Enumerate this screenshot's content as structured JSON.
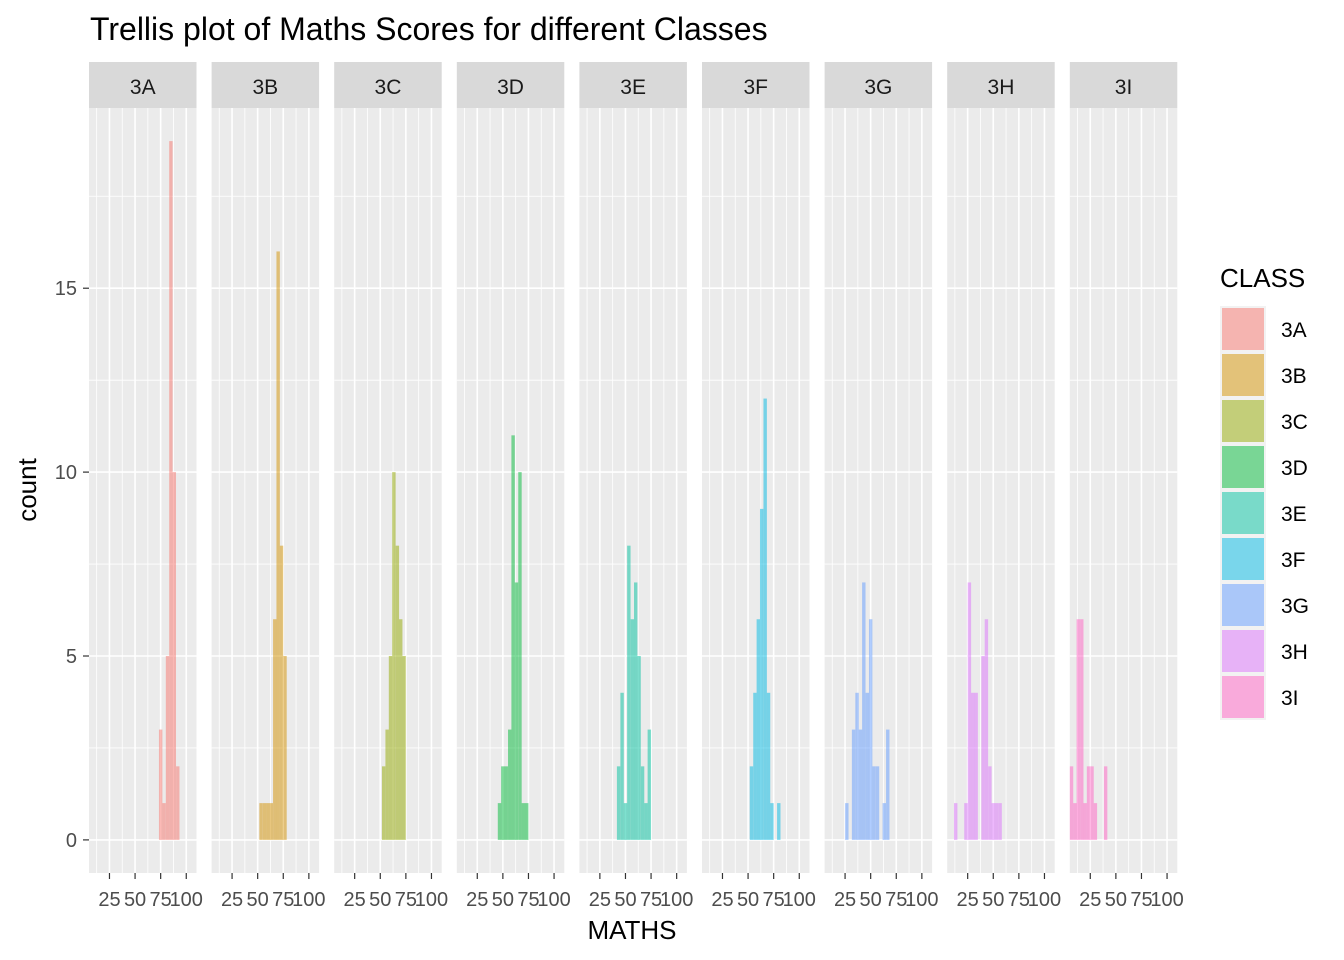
{
  "chart_data": {
    "type": "bar",
    "subtype": "faceted-histogram",
    "title": "Trellis plot of Maths Scores for different Classes",
    "xlabel": "MATHS",
    "ylabel": "count",
    "xlim": [
      5,
      110
    ],
    "ylim": [
      -0.9,
      19.9
    ],
    "x_ticks": [
      25,
      50,
      75,
      100
    ],
    "y_ticks": [
      0,
      5,
      10,
      15
    ],
    "bin_width": 3.33,
    "bar_opacity": 0.5,
    "grid": true,
    "panel_background": "#ebebeb",
    "strip_background": "#d9d9d9",
    "legend": {
      "title": "CLASS",
      "position": "right",
      "entries": [
        "3A",
        "3B",
        "3C",
        "3D",
        "3E",
        "3F",
        "3G",
        "3H",
        "3I"
      ]
    },
    "facets": [
      {
        "name": "3A",
        "color": "#F8766D",
        "bins": [
          {
            "x": 75.0,
            "count": 3
          },
          {
            "x": 78.3,
            "count": 1
          },
          {
            "x": 81.7,
            "count": 5
          },
          {
            "x": 85.0,
            "count": 19
          },
          {
            "x": 88.3,
            "count": 10
          },
          {
            "x": 91.7,
            "count": 2
          }
        ]
      },
      {
        "name": "3B",
        "color": "#D39200",
        "bins": [
          {
            "x": 53.3,
            "count": 1
          },
          {
            "x": 56.7,
            "count": 1
          },
          {
            "x": 60.0,
            "count": 1
          },
          {
            "x": 63.3,
            "count": 1
          },
          {
            "x": 66.7,
            "count": 6
          },
          {
            "x": 70.0,
            "count": 16
          },
          {
            "x": 73.3,
            "count": 8
          },
          {
            "x": 76.7,
            "count": 5
          }
        ]
      },
      {
        "name": "3C",
        "color": "#93AA00",
        "bins": [
          {
            "x": 53.3,
            "count": 2
          },
          {
            "x": 56.7,
            "count": 3
          },
          {
            "x": 60.0,
            "count": 5
          },
          {
            "x": 63.3,
            "count": 10
          },
          {
            "x": 66.7,
            "count": 8
          },
          {
            "x": 70.0,
            "count": 6
          },
          {
            "x": 73.3,
            "count": 5
          }
        ]
      },
      {
        "name": "3D",
        "color": "#00BA38",
        "bins": [
          {
            "x": 46.7,
            "count": 1
          },
          {
            "x": 50.0,
            "count": 2
          },
          {
            "x": 53.3,
            "count": 2
          },
          {
            "x": 56.7,
            "count": 3
          },
          {
            "x": 60.0,
            "count": 11
          },
          {
            "x": 63.3,
            "count": 7
          },
          {
            "x": 66.7,
            "count": 10
          },
          {
            "x": 70.0,
            "count": 1
          },
          {
            "x": 73.3,
            "count": 1
          }
        ]
      },
      {
        "name": "3E",
        "color": "#00C19F",
        "bins": [
          {
            "x": 43.3,
            "count": 2
          },
          {
            "x": 46.7,
            "count": 4
          },
          {
            "x": 50.0,
            "count": 1
          },
          {
            "x": 53.3,
            "count": 8
          },
          {
            "x": 56.7,
            "count": 6
          },
          {
            "x": 60.0,
            "count": 7
          },
          {
            "x": 63.3,
            "count": 5
          },
          {
            "x": 66.7,
            "count": 2
          },
          {
            "x": 70.0,
            "count": 1
          },
          {
            "x": 73.3,
            "count": 3
          }
        ]
      },
      {
        "name": "3F",
        "color": "#00B9E3",
        "bins": [
          {
            "x": 53.3,
            "count": 2
          },
          {
            "x": 56.7,
            "count": 4
          },
          {
            "x": 60.0,
            "count": 6
          },
          {
            "x": 63.3,
            "count": 9
          },
          {
            "x": 66.7,
            "count": 12
          },
          {
            "x": 70.0,
            "count": 4
          },
          {
            "x": 73.3,
            "count": 1
          },
          {
            "x": 80.0,
            "count": 1
          }
        ]
      },
      {
        "name": "3G",
        "color": "#619CFF",
        "bins": [
          {
            "x": 26.7,
            "count": 1
          },
          {
            "x": 33.3,
            "count": 3
          },
          {
            "x": 36.7,
            "count": 4
          },
          {
            "x": 40.0,
            "count": 3
          },
          {
            "x": 43.3,
            "count": 7
          },
          {
            "x": 46.7,
            "count": 4
          },
          {
            "x": 50.0,
            "count": 6
          },
          {
            "x": 53.3,
            "count": 2
          },
          {
            "x": 56.7,
            "count": 2
          },
          {
            "x": 63.3,
            "count": 1
          },
          {
            "x": 66.7,
            "count": 3
          }
        ]
      },
      {
        "name": "3H",
        "color": "#DB72FB",
        "bins": [
          {
            "x": 13.3,
            "count": 1
          },
          {
            "x": 23.3,
            "count": 1
          },
          {
            "x": 26.7,
            "count": 7
          },
          {
            "x": 30.0,
            "count": 4
          },
          {
            "x": 33.3,
            "count": 4
          },
          {
            "x": 40.0,
            "count": 5
          },
          {
            "x": 43.3,
            "count": 6
          },
          {
            "x": 46.7,
            "count": 2
          },
          {
            "x": 50.0,
            "count": 1
          },
          {
            "x": 53.3,
            "count": 1
          },
          {
            "x": 56.7,
            "count": 1
          }
        ]
      },
      {
        "name": "3I",
        "color": "#FF61C3",
        "bins": [
          {
            "x": 6.7,
            "count": 2
          },
          {
            "x": 10.0,
            "count": 1
          },
          {
            "x": 13.3,
            "count": 6
          },
          {
            "x": 16.7,
            "count": 6
          },
          {
            "x": 20.0,
            "count": 1
          },
          {
            "x": 23.3,
            "count": 2
          },
          {
            "x": 26.7,
            "count": 2
          },
          {
            "x": 30.0,
            "count": 1
          },
          {
            "x": 40.0,
            "count": 2
          }
        ]
      }
    ]
  }
}
